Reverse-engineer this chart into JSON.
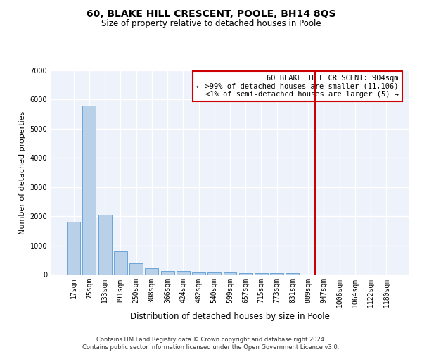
{
  "title": "60, BLAKE HILL CRESCENT, POOLE, BH14 8QS",
  "subtitle": "Size of property relative to detached houses in Poole",
  "xlabel": "Distribution of detached houses by size in Poole",
  "ylabel": "Number of detached properties",
  "categories": [
    "17sqm",
    "75sqm",
    "133sqm",
    "191sqm",
    "250sqm",
    "308sqm",
    "366sqm",
    "424sqm",
    "482sqm",
    "540sqm",
    "599sqm",
    "657sqm",
    "715sqm",
    "773sqm",
    "831sqm",
    "889sqm",
    "947sqm",
    "1006sqm",
    "1064sqm",
    "1122sqm",
    "1180sqm"
  ],
  "values": [
    1800,
    5800,
    2050,
    800,
    380,
    220,
    110,
    110,
    70,
    70,
    70,
    50,
    50,
    50,
    50,
    0,
    0,
    0,
    0,
    0,
    0
  ],
  "bar_color": "#b8d0e8",
  "bar_edge_color": "#5b9bd5",
  "background_color": "#eef2fa",
  "grid_color": "#ffffff",
  "red_line_x": 15,
  "annotation_line1": "60 BLAKE HILL CRESCENT: 904sqm",
  "annotation_line2": "← >99% of detached houses are smaller (11,106)",
  "annotation_line3": "<1% of semi-detached houses are larger (5) →",
  "annotation_box_color": "#cc0000",
  "ylim": [
    0,
    7000
  ],
  "yticks": [
    0,
    1000,
    2000,
    3000,
    4000,
    5000,
    6000,
    7000
  ],
  "footer_line1": "Contains HM Land Registry data © Crown copyright and database right 2024.",
  "footer_line2": "Contains public sector information licensed under the Open Government Licence v3.0.",
  "title_fontsize": 10,
  "subtitle_fontsize": 8.5,
  "ylabel_fontsize": 8,
  "xlabel_fontsize": 8.5,
  "tick_fontsize": 7,
  "footer_fontsize": 6,
  "annot_fontsize": 7.5
}
